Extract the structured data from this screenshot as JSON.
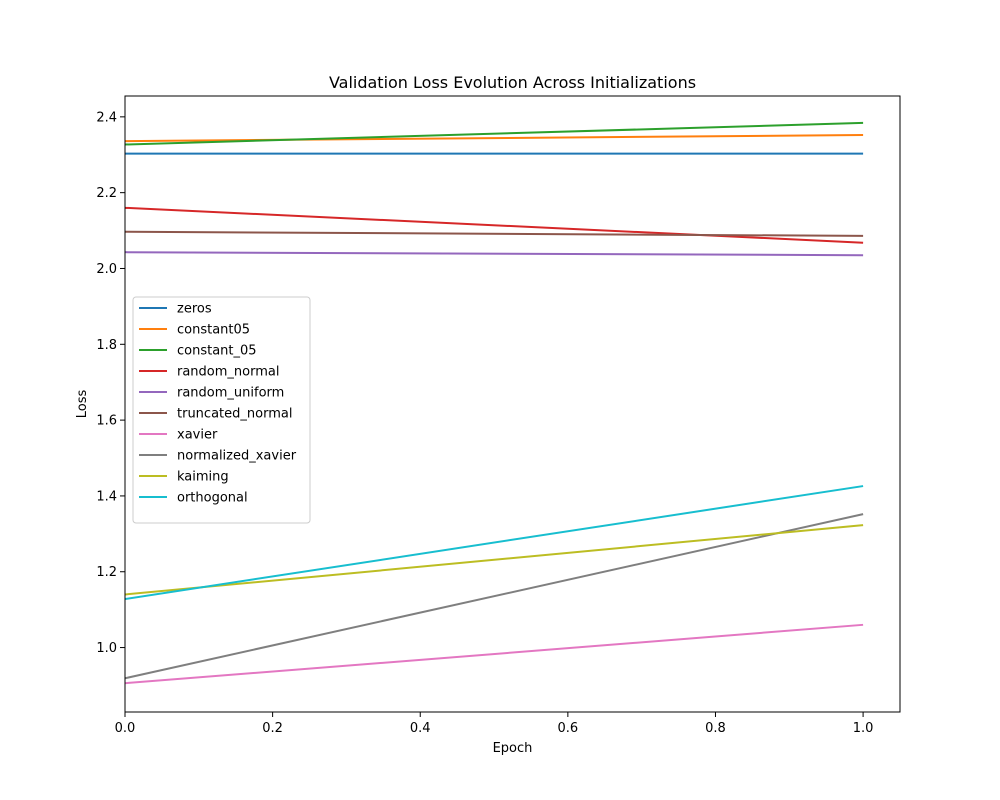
{
  "chart_data": {
    "type": "line",
    "title": "Validation Loss Evolution Across Initializations",
    "xlabel": "Epoch",
    "ylabel": "Loss",
    "xlim": [
      0.0,
      1.05
    ],
    "ylim": [
      0.83,
      2.455
    ],
    "x_ticks": [
      0.0,
      0.2,
      0.4,
      0.6,
      0.8,
      1.0
    ],
    "x_tick_labels": [
      "0.0",
      "0.2",
      "0.4",
      "0.6",
      "0.8",
      "1.0"
    ],
    "y_ticks": [
      1.0,
      1.2,
      1.4,
      1.6,
      1.8,
      2.0,
      2.2,
      2.4
    ],
    "y_tick_labels": [
      "1.0",
      "1.2",
      "1.4",
      "1.6",
      "1.8",
      "2.0",
      "2.2",
      "2.4"
    ],
    "grid": false,
    "legend_position": "center-left",
    "x": [
      0,
      1
    ],
    "series": [
      {
        "name": "zeros",
        "color": "#1f77b4",
        "values": [
          2.303,
          2.303
        ]
      },
      {
        "name": "constant05",
        "color": "#ff7f0e",
        "values": [
          2.336,
          2.352
        ]
      },
      {
        "name": "constant_05",
        "color": "#2ca02c",
        "values": [
          2.327,
          2.384
        ]
      },
      {
        "name": "random_normal",
        "color": "#d62728",
        "values": [
          2.16,
          2.068
        ]
      },
      {
        "name": "random_uniform",
        "color": "#9467bd",
        "values": [
          2.043,
          2.035
        ]
      },
      {
        "name": "truncated_normal",
        "color": "#8c564b",
        "values": [
          2.097,
          2.086
        ]
      },
      {
        "name": "xavier",
        "color": "#e377c2",
        "values": [
          0.906,
          1.06
        ]
      },
      {
        "name": "normalized_xavier",
        "color": "#7f7f7f",
        "values": [
          0.919,
          1.352
        ]
      },
      {
        "name": "kaiming",
        "color": "#bcbd22",
        "values": [
          1.14,
          1.323
        ]
      },
      {
        "name": "orthogonal",
        "color": "#17becf",
        "values": [
          1.128,
          1.426
        ]
      }
    ]
  }
}
